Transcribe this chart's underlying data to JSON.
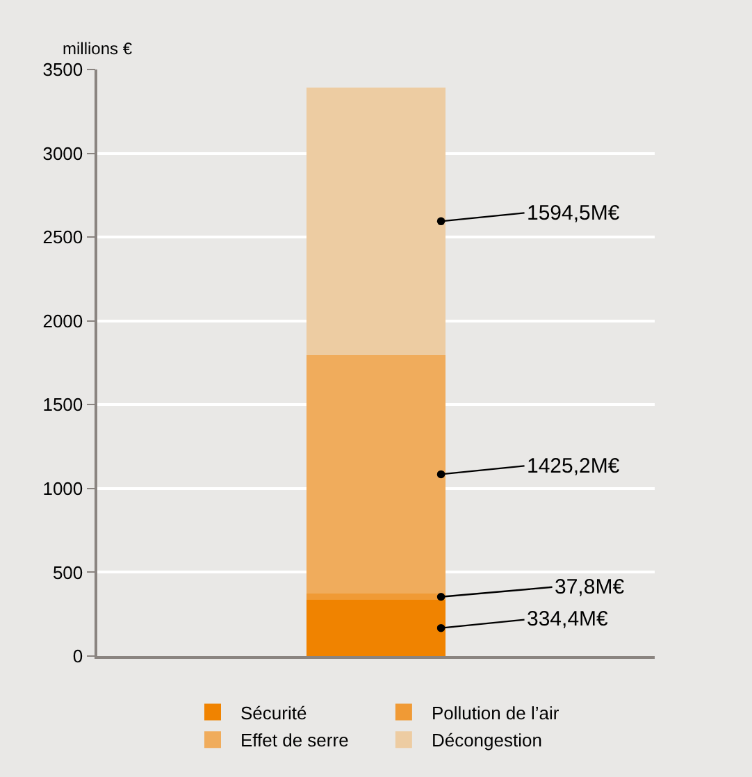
{
  "chart_data": {
    "type": "bar",
    "stacked": true,
    "categories": [
      null
    ],
    "ylabel": "millions €",
    "ylim": [
      0,
      3500
    ],
    "yticks": [
      0,
      500,
      1000,
      1500,
      2000,
      2500,
      3000,
      3500
    ],
    "grid": "y",
    "legend": "bottom",
    "series": [
      {
        "name": "Sécurité",
        "color": "#f08300",
        "values": [
          334.4
        ],
        "value_labels": [
          "334,4M€"
        ]
      },
      {
        "name": "Pollution de l’air",
        "color": "#f09a35",
        "values": [
          37.8
        ],
        "value_labels": [
          "37,8M€"
        ]
      },
      {
        "name": "Effet de serre",
        "color": "#f0ac5c",
        "values": [
          1425.2
        ],
        "value_labels": [
          "1425,2M€"
        ]
      },
      {
        "name": "Décongestion",
        "color": "#edcca2",
        "values": [
          1594.5
        ],
        "value_labels": [
          "1594,5M€"
        ]
      }
    ]
  }
}
